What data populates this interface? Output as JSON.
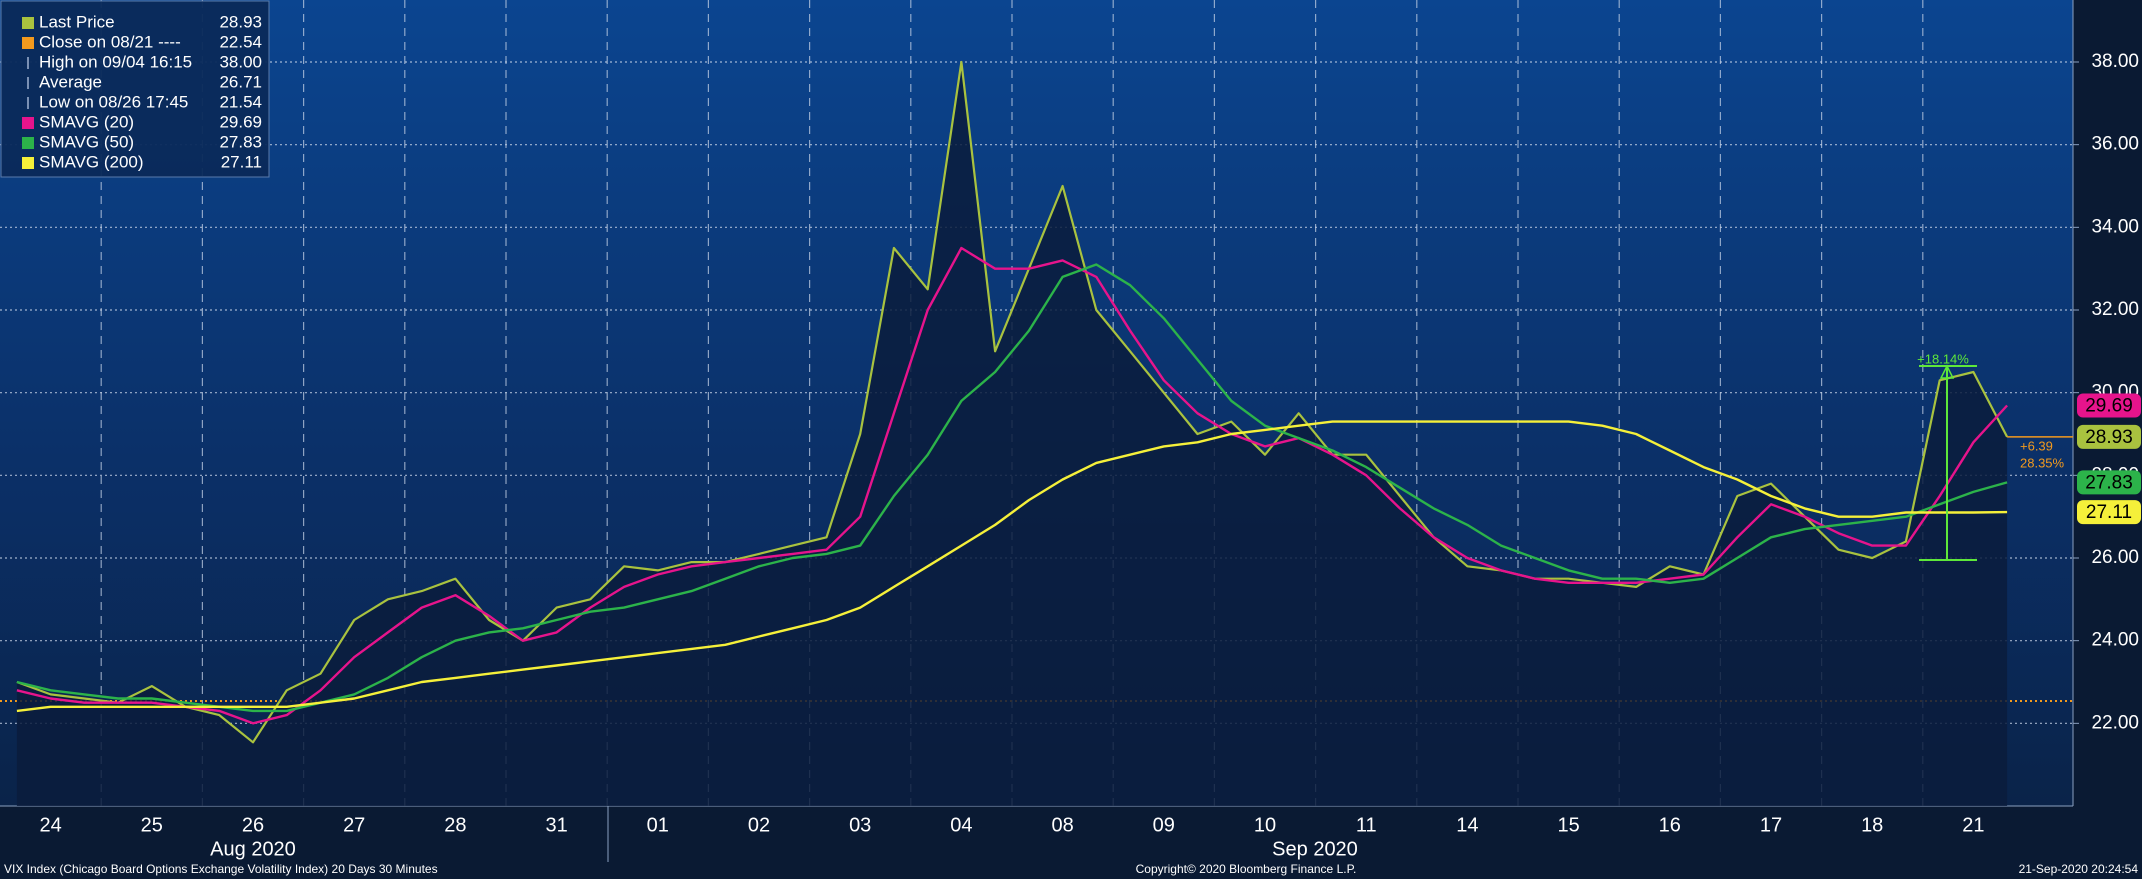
{
  "chart_data": {
    "type": "line",
    "categories": [
      null,
      "24",
      null,
      null,
      "25",
      null,
      null,
      "26",
      null,
      null,
      "27",
      null,
      null,
      "28",
      null,
      null,
      "31",
      null,
      null,
      "01",
      null,
      null,
      "02",
      null,
      null,
      "03",
      null,
      null,
      "04",
      null,
      null,
      "08",
      null,
      null,
      "09",
      null,
      null,
      "10",
      null,
      null,
      "11",
      null,
      null,
      "14",
      null,
      null,
      "15",
      null,
      null,
      "16",
      null,
      null,
      "17",
      null,
      null,
      "18",
      null,
      null,
      "21",
      null
    ],
    "months": [
      "Aug 2020",
      "Sep 2020"
    ],
    "series": [
      {
        "name": "Last Price",
        "color": "#a9c23f",
        "fill": true,
        "values": [
          23.0,
          22.7,
          22.6,
          22.5,
          22.9,
          22.4,
          22.2,
          21.54,
          22.8,
          23.2,
          24.5,
          25.0,
          25.2,
          25.5,
          24.5,
          24.0,
          24.8,
          25.0,
          25.8,
          25.7,
          25.9,
          25.9,
          26.1,
          26.3,
          26.5,
          29.0,
          33.5,
          32.5,
          38.0,
          31.0,
          33.0,
          35.0,
          32.0,
          31.0,
          30.0,
          29.0,
          29.3,
          28.5,
          29.5,
          28.5,
          28.5,
          27.5,
          26.5,
          25.8,
          25.7,
          25.5,
          25.5,
          25.4,
          25.3,
          25.8,
          25.6,
          27.5,
          27.8,
          27.0,
          26.2,
          26.0,
          26.4,
          30.3,
          30.5,
          28.93
        ]
      },
      {
        "name": "SMAVG (20)",
        "color": "#e6148c",
        "values": [
          22.8,
          22.6,
          22.5,
          22.5,
          22.5,
          22.4,
          22.3,
          22.0,
          22.2,
          22.8,
          23.6,
          24.2,
          24.8,
          25.1,
          24.6,
          24.0,
          24.2,
          24.8,
          25.3,
          25.6,
          25.8,
          25.9,
          26.0,
          26.1,
          26.2,
          27.0,
          29.5,
          32.0,
          33.5,
          33.0,
          33.0,
          33.2,
          32.8,
          31.5,
          30.3,
          29.5,
          29.0,
          28.7,
          28.9,
          28.5,
          28.0,
          27.2,
          26.5,
          26.0,
          25.7,
          25.5,
          25.4,
          25.4,
          25.4,
          25.5,
          25.6,
          26.5,
          27.3,
          27.0,
          26.6,
          26.3,
          26.3,
          27.5,
          28.8,
          29.69
        ]
      },
      {
        "name": "SMAVG (50)",
        "color": "#2cb34a",
        "values": [
          23.0,
          22.8,
          22.7,
          22.6,
          22.6,
          22.5,
          22.4,
          22.3,
          22.3,
          22.5,
          22.7,
          23.1,
          23.6,
          24.0,
          24.2,
          24.3,
          24.5,
          24.7,
          24.8,
          25.0,
          25.2,
          25.5,
          25.8,
          26.0,
          26.1,
          26.3,
          27.5,
          28.5,
          29.8,
          30.5,
          31.5,
          32.8,
          33.1,
          32.6,
          31.8,
          30.8,
          29.8,
          29.2,
          28.9,
          28.6,
          28.2,
          27.7,
          27.2,
          26.8,
          26.3,
          26.0,
          25.7,
          25.5,
          25.5,
          25.4,
          25.5,
          26.0,
          26.5,
          26.7,
          26.8,
          26.9,
          27.0,
          27.3,
          27.6,
          27.83
        ]
      },
      {
        "name": "SMAVG (200)",
        "color": "#f5f03a",
        "values": [
          22.3,
          22.4,
          22.4,
          22.4,
          22.4,
          22.4,
          22.4,
          22.4,
          22.4,
          22.5,
          22.6,
          22.8,
          23.0,
          23.1,
          23.2,
          23.3,
          23.4,
          23.5,
          23.6,
          23.7,
          23.8,
          23.9,
          24.1,
          24.3,
          24.5,
          24.8,
          25.3,
          25.8,
          26.3,
          26.8,
          27.4,
          27.9,
          28.3,
          28.5,
          28.7,
          28.8,
          29.0,
          29.1,
          29.2,
          29.3,
          29.3,
          29.3,
          29.3,
          29.3,
          29.3,
          29.3,
          29.3,
          29.2,
          29.0,
          28.6,
          28.2,
          27.9,
          27.5,
          27.2,
          27.0,
          27.0,
          27.1,
          27.1,
          27.1,
          27.11
        ]
      }
    ],
    "references": [
      {
        "name": "Close on 08/21 ----",
        "value": 22.54,
        "color": "#f39a1e",
        "line": true
      },
      {
        "name": "High on 09/04 16:15",
        "value": 38,
        "label": "38.00"
      },
      {
        "name": "Average",
        "value": 26.71
      },
      {
        "name": "Low on 08/26 17:45",
        "value": 21.54
      }
    ],
    "legend_order": [
      "s0",
      "r0",
      "r1",
      "r2",
      "r3",
      "s1",
      "s2",
      "s3"
    ],
    "annotations": [
      "+18.14%",
      "+6.39",
      "28.35%"
    ],
    "ylim": [
      20,
      39.5
    ],
    "yticks": [
      {
        "value": 22,
        "label": "22.00"
      },
      {
        "value": 24,
        "label": "24.00"
      },
      {
        "value": 26,
        "label": "26.00"
      },
      {
        "value": 28,
        "label": "28.00"
      },
      {
        "value": 30,
        "label": "30.00"
      },
      {
        "value": 32,
        "label": "32.00"
      },
      {
        "value": 34,
        "label": "34.00"
      },
      {
        "value": 36,
        "label": "36.00"
      },
      {
        "value": 38,
        "label": "38.00"
      }
    ],
    "grid": true,
    "footer": {
      "left": "VIX Index (Chicago Board Options Exchange Volatility Index) 20 Days 30 Minutes",
      "center": "Copyright© 2020 Bloomberg Finance L.P.",
      "right": "21-Sep-2020 20:24:54"
    }
  }
}
